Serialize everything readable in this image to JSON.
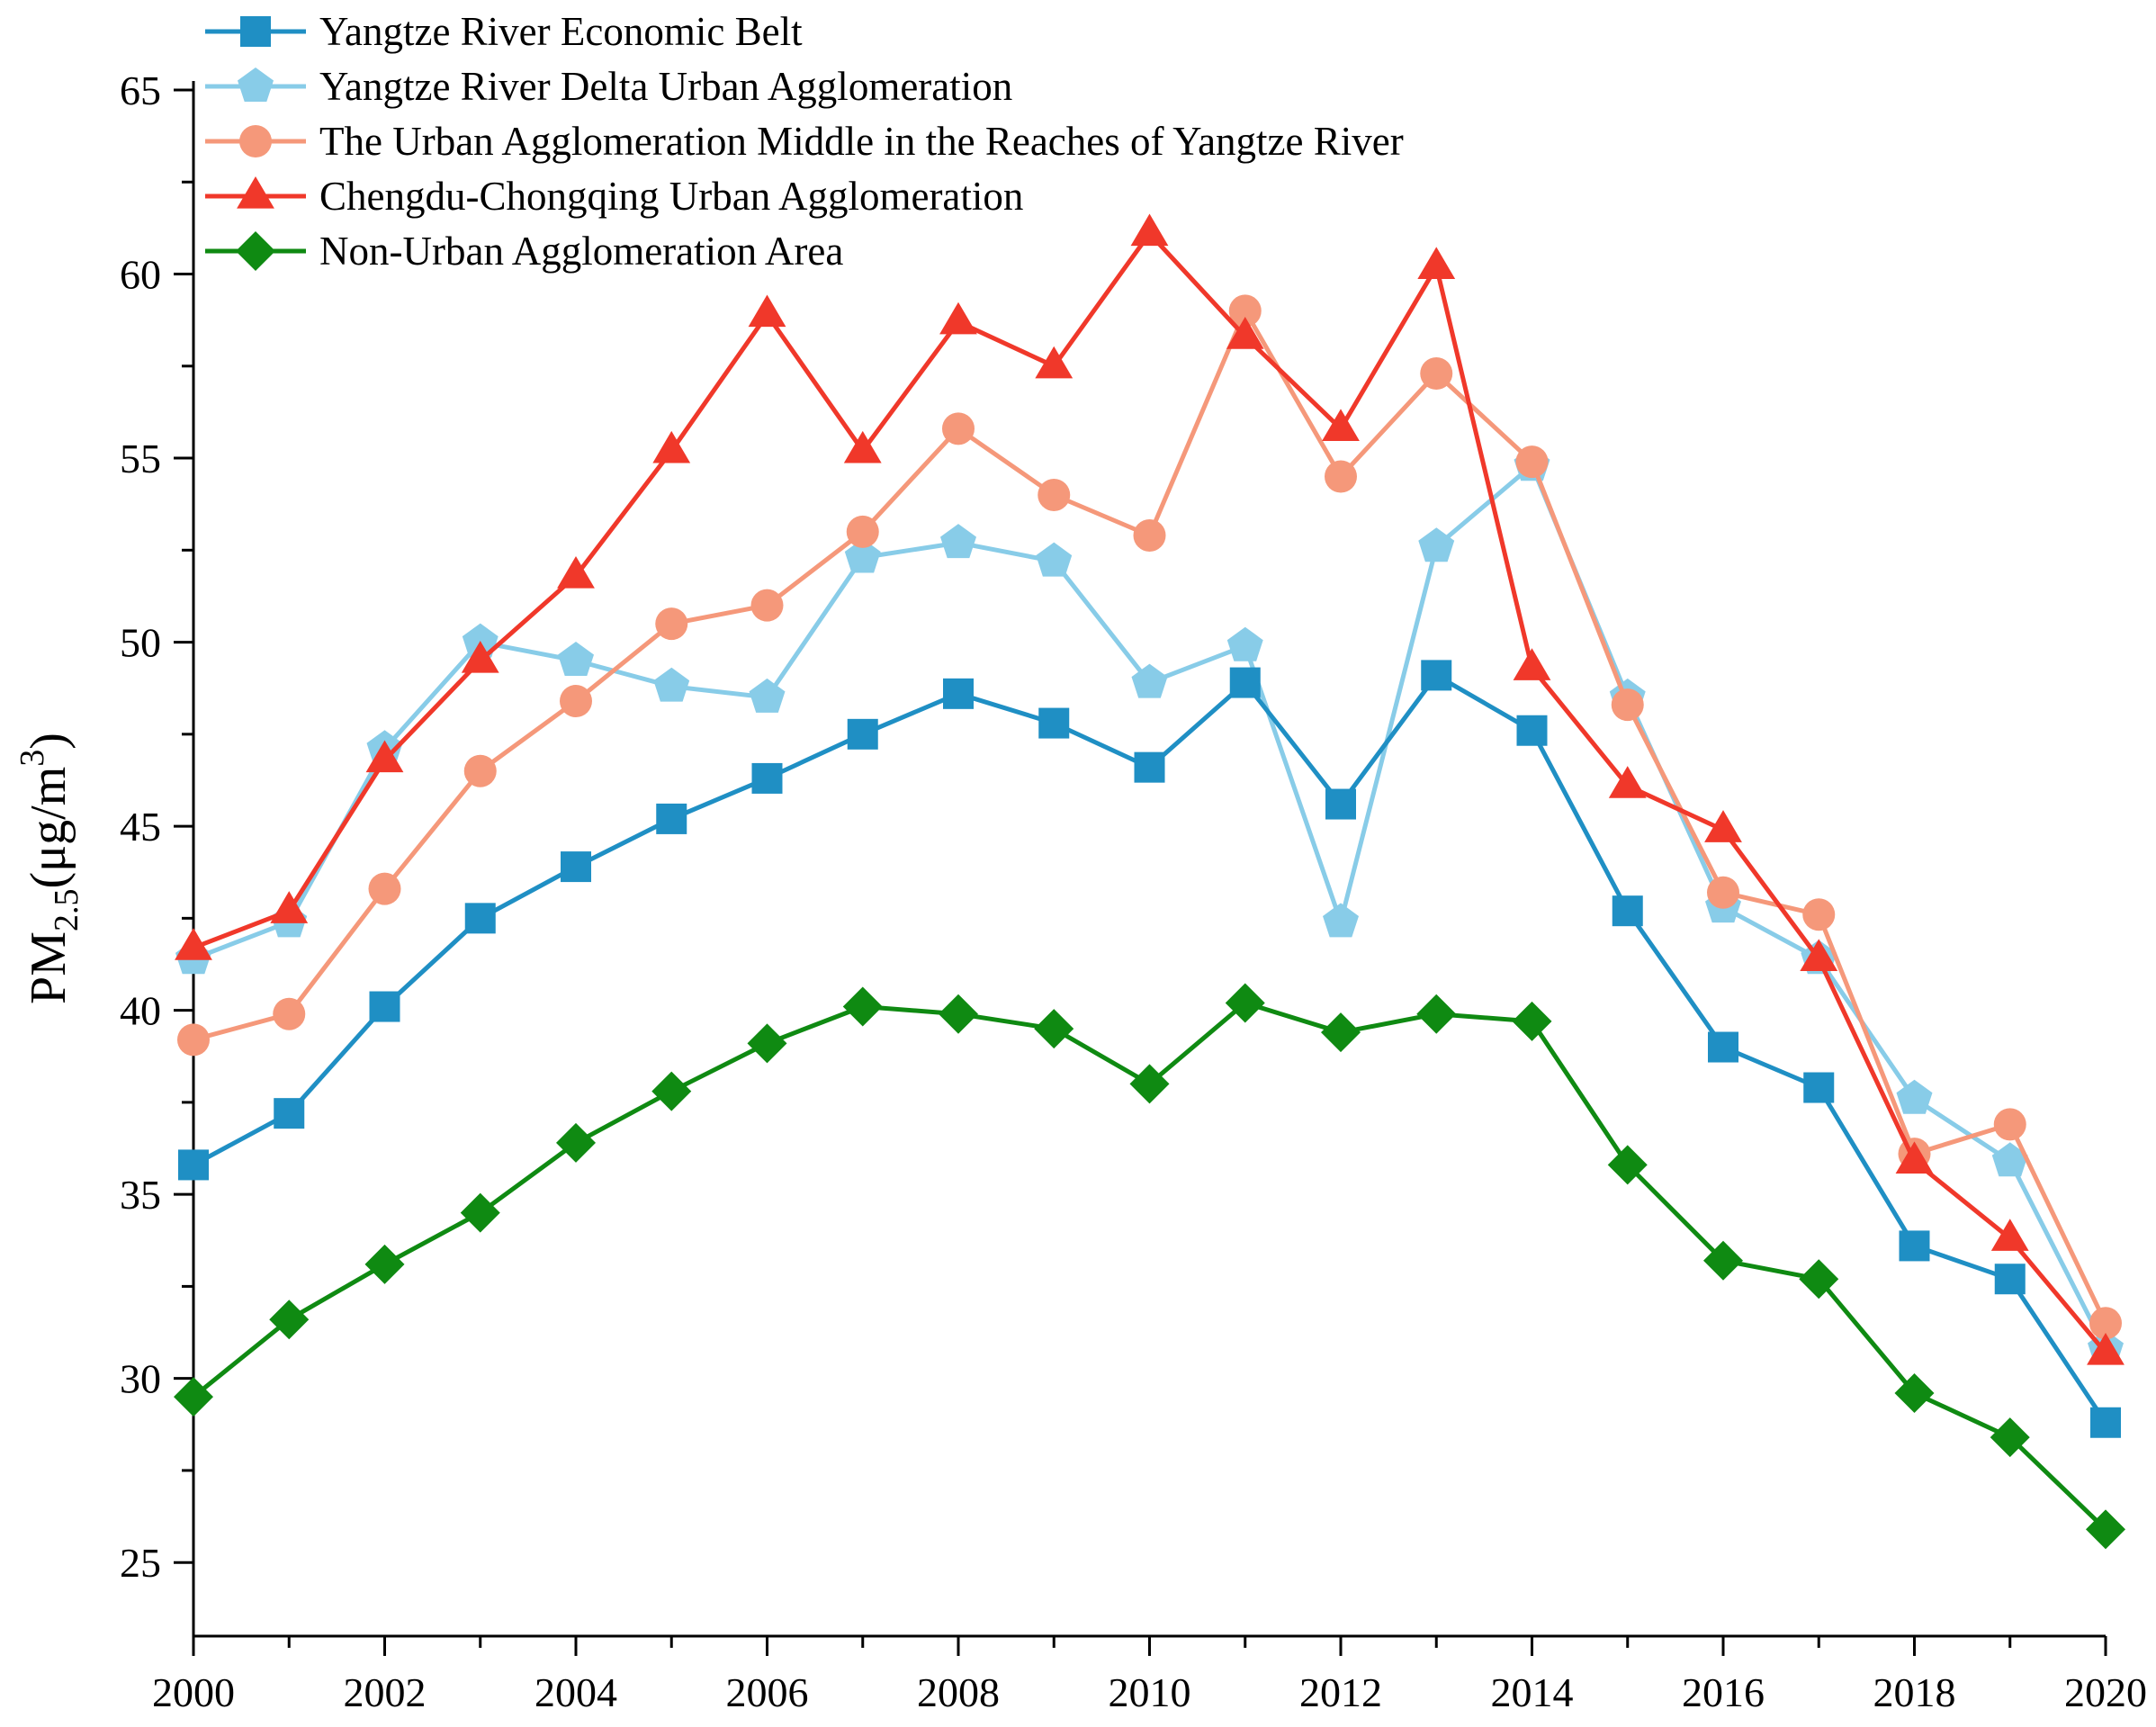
{
  "chart_data": {
    "type": "line",
    "title": "",
    "xlabel": "",
    "ylabel": {
      "prefix": "PM",
      "subscript": "2.5",
      "unit_open": "(μg/m",
      "superscript": "3",
      "unit_close": ")"
    },
    "xlim": [
      2000,
      2020
    ],
    "ylim": [
      23,
      65
    ],
    "x_ticks": [
      "2000",
      "2002",
      "2004",
      "2006",
      "2008",
      "2010",
      "2012",
      "2014",
      "2016",
      "2018",
      "2020"
    ],
    "y_ticks": [
      "25",
      "30",
      "35",
      "40",
      "45",
      "50",
      "55",
      "60",
      "65"
    ],
    "legend_position": "top-left",
    "grid": false,
    "x": [
      2000,
      2001,
      2002,
      2003,
      2004,
      2005,
      2006,
      2007,
      2008,
      2009,
      2010,
      2011,
      2012,
      2013,
      2014,
      2015,
      2016,
      2017,
      2018,
      2019,
      2020
    ],
    "series": [
      {
        "name": "Yangtze River Economic Belt",
        "color": "#1f8fc4",
        "marker": "square",
        "values": [
          35.8,
          37.2,
          40.1,
          42.5,
          43.9,
          45.2,
          46.3,
          47.5,
          48.6,
          47.8,
          46.6,
          48.9,
          45.6,
          49.1,
          47.6,
          42.7,
          39.0,
          37.9,
          33.6,
          32.7,
          28.8
        ]
      },
      {
        "name": "Yangtze River Delta Urban Agglomeration",
        "color": "#88cce8",
        "marker": "pentagon",
        "values": [
          41.4,
          42.4,
          47.1,
          50.0,
          49.5,
          48.8,
          48.5,
          52.3,
          52.7,
          52.2,
          48.9,
          49.9,
          42.4,
          52.6,
          54.8,
          48.5,
          42.8,
          41.4,
          37.6,
          35.9,
          30.8
        ]
      },
      {
        "name": "The Urban Agglomeration Middle in the Reaches of Yangtze River",
        "color": "#f5987a",
        "marker": "circle",
        "values": [
          39.2,
          39.9,
          43.3,
          46.5,
          48.4,
          50.5,
          51.0,
          53.0,
          55.8,
          54.0,
          52.9,
          59.0,
          54.5,
          57.3,
          54.9,
          48.3,
          43.2,
          42.6,
          36.1,
          36.9,
          31.5
        ]
      },
      {
        "name": "Chengdu-Chongqing Urban Agglomeration",
        "color": "#f0382a",
        "marker": "triangle",
        "values": [
          41.7,
          42.7,
          46.8,
          49.5,
          51.8,
          55.2,
          58.9,
          55.2,
          58.7,
          57.5,
          61.1,
          58.3,
          55.8,
          60.2,
          49.3,
          46.1,
          44.9,
          41.4,
          35.9,
          33.8,
          30.7
        ]
      },
      {
        "name": "Non-Urban Agglomeration Area",
        "color": "#0f8a12",
        "marker": "diamond",
        "values": [
          29.5,
          31.6,
          33.1,
          34.5,
          36.4,
          37.8,
          39.1,
          40.1,
          39.9,
          39.5,
          38.0,
          40.2,
          39.4,
          39.9,
          39.7,
          35.8,
          33.2,
          32.7,
          29.6,
          28.4,
          25.9
        ]
      }
    ]
  }
}
